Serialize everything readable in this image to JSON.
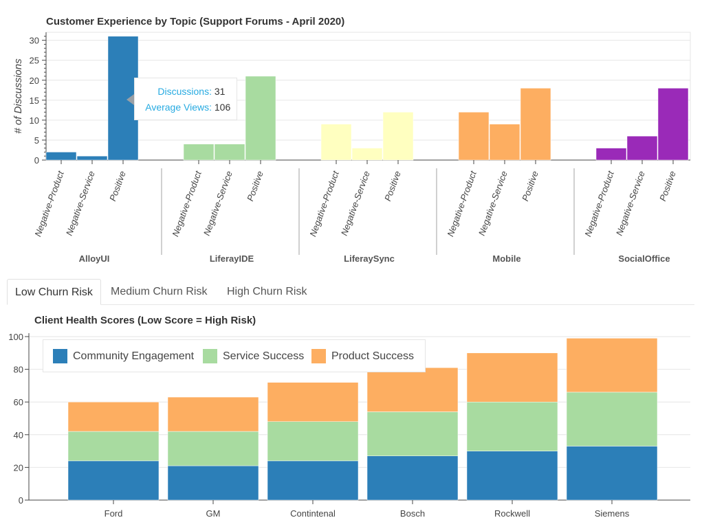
{
  "tabs": [
    "Low Churn Risk",
    "Medium Churn Risk",
    "High Churn Risk"
  ],
  "active_tab": "Low Churn Risk",
  "tooltip": {
    "discussions_label": "Discussions:",
    "discussions_value": "31",
    "views_label": "Average Views:",
    "views_value": "106"
  },
  "colors": {
    "AlloyUI": "#2c7fb8",
    "LiferayIDE": "#a8dba0",
    "LiferaySync": "#ffffc0",
    "Mobile": "#fdae61",
    "SocialOffice": "#9a2ab8",
    "Community Engagement": "#2c7fb8",
    "Service Success": "#a8dba0",
    "Product Success": "#fdae61"
  },
  "chart_data": [
    {
      "type": "bar",
      "title": "Customer Experience by Topic (Support Forums - April 2020)",
      "ylabel": "# of Discussions",
      "xlabel": "",
      "ylim": [
        0,
        32
      ],
      "yticks": [
        0,
        5,
        10,
        15,
        20,
        25,
        30
      ],
      "groups": [
        "AlloyUI",
        "LiferayIDE",
        "LiferaySync",
        "Mobile",
        "SocialOffice"
      ],
      "group_labels": [
        "AlloyUI",
        "LiferayIDE",
        "LiferaySync",
        "Mobile",
        "SocialOffice"
      ],
      "subcategories": [
        "Negative-Product",
        "Negative-Service",
        "Positive"
      ],
      "values": [
        [
          2,
          1,
          31
        ],
        [
          4,
          4,
          21
        ],
        [
          9,
          3,
          12
        ],
        [
          12,
          9,
          18
        ],
        [
          3,
          6,
          18
        ]
      ],
      "grid": true
    },
    {
      "type": "bar",
      "stacked": true,
      "title": "Client Health Scores (Low Score = High Risk)",
      "xlabel": "",
      "ylabel": "",
      "ylim": [
        0,
        100
      ],
      "yticks": [
        0,
        20,
        40,
        60,
        80,
        100
      ],
      "categories": [
        "Ford",
        "GM",
        "Contintenal",
        "Bosch",
        "Rockwell",
        "Siemens"
      ],
      "series": [
        {
          "name": "Community Engagement",
          "values": [
            24,
            21,
            24,
            27,
            30,
            33
          ]
        },
        {
          "name": "Service Success",
          "values": [
            18,
            21,
            24,
            27,
            30,
            33
          ]
        },
        {
          "name": "Product Success",
          "values": [
            18,
            21,
            24,
            27,
            30,
            33
          ]
        }
      ],
      "legend": "top-left",
      "grid": true
    }
  ]
}
